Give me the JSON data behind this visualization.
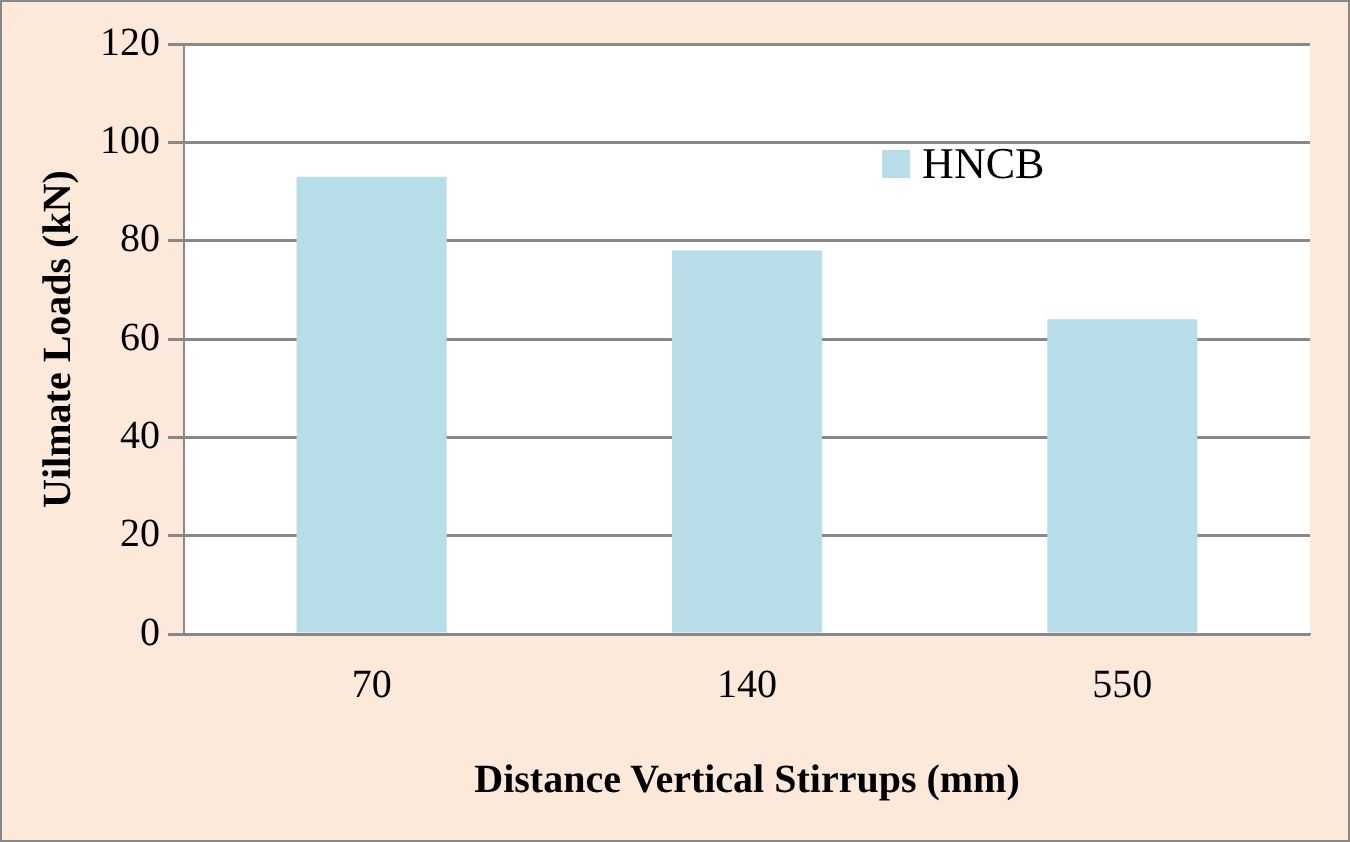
{
  "chart_data": {
    "type": "bar",
    "xlabel": "Distance Vertical Stirrups (mm)",
    "ylabel": "Uilmate Loads (kN)",
    "categories": [
      "70",
      "140",
      "550"
    ],
    "series": [
      {
        "name": "HNCB",
        "color": "#b6dde8",
        "values": [
          93,
          78,
          64
        ]
      }
    ],
    "ylim": [
      0,
      120
    ],
    "yticks": [
      0,
      20,
      40,
      60,
      80,
      100,
      120
    ],
    "grid": "y",
    "legend": "top right"
  }
}
